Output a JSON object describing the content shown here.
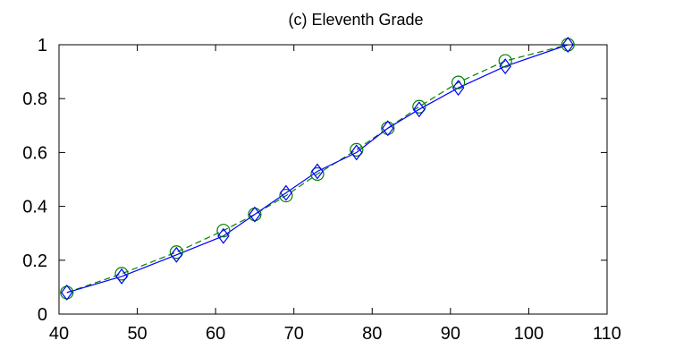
{
  "chart_data": {
    "type": "line",
    "title": "(c) Eleventh Grade",
    "xlabel": "",
    "ylabel": "",
    "xlim": [
      40,
      110
    ],
    "ylim": [
      0,
      1
    ],
    "x_ticks": [
      40,
      50,
      60,
      70,
      80,
      90,
      100,
      110
    ],
    "y_ticks": [
      0,
      0.2,
      0.4,
      0.6,
      0.8,
      1
    ],
    "x_tick_labels": [
      "40",
      "50",
      "60",
      "70",
      "80",
      "90",
      "100",
      "110"
    ],
    "y_tick_labels": [
      "0",
      "0.2",
      "0.4",
      "0.6",
      "0.8",
      "1"
    ],
    "grid": false,
    "legend": null,
    "series": [
      {
        "line_style": "dashed",
        "marker": "circle",
        "color": "#008000",
        "x": [
          41,
          48,
          55,
          61,
          65,
          69,
          73,
          78,
          82,
          86,
          91,
          97,
          105
        ],
        "y": [
          0.08,
          0.15,
          0.23,
          0.31,
          0.37,
          0.44,
          0.52,
          0.61,
          0.69,
          0.77,
          0.86,
          0.94,
          1.0
        ]
      },
      {
        "line_style": "solid",
        "marker": "diamond",
        "color": "#0000ff",
        "x": [
          41,
          48,
          55,
          61,
          65,
          69,
          73,
          78,
          82,
          86,
          91,
          97,
          105
        ],
        "y": [
          0.08,
          0.14,
          0.22,
          0.29,
          0.37,
          0.45,
          0.53,
          0.6,
          0.69,
          0.76,
          0.84,
          0.92,
          1.0
        ]
      }
    ]
  }
}
